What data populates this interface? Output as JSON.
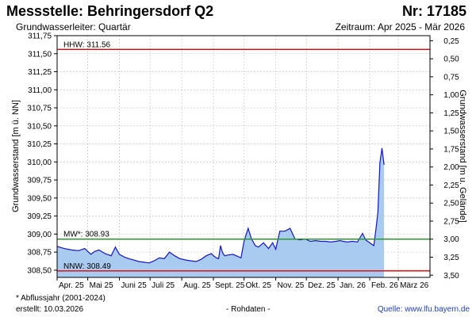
{
  "header": {
    "title": "Messstelle: Behringersdorf Q2",
    "station": "Nr: 17185",
    "subtitle": "Grundwasserleiter: Quartär",
    "period": "Zeitraum: Apr 2025 - Mär 2026"
  },
  "footer": {
    "footnote": "* Abflussjahr (2001-2024)",
    "created": "erstellt:  10.03.2026",
    "raw": "- Rohdaten -",
    "source": "Quelle: www.lfu.bayern.de"
  },
  "colors": {
    "fill": "#a9cbf0",
    "line": "#1414c8",
    "hhw": "#e00000",
    "mw": "#2a9a2a",
    "nnw": "#e00000",
    "grid": "#bdbdbd"
  },
  "chart_data": {
    "type": "area",
    "title": "",
    "ylabel": "Grundwasserstand [m ü. NN]",
    "ylabel_right": "Grundwasserstand [m u. Gelände]",
    "ylim": [
      308.4,
      311.75
    ],
    "y_ticks": [
      308.5,
      308.75,
      309.0,
      309.25,
      309.5,
      309.75,
      310.0,
      310.25,
      310.5,
      310.75,
      311.0,
      311.25,
      311.5,
      311.75
    ],
    "y_tick_labels": [
      "308,50",
      "308,75",
      "309,00",
      "309,25",
      "309,50",
      "309,75",
      "310,00",
      "310,25",
      "310,50",
      "310,75",
      "311,00",
      "311,25",
      "311,50",
      "311,75"
    ],
    "y2_ticks": [
      0.25,
      0.5,
      0.75,
      1.0,
      1.25,
      1.5,
      1.75,
      2.0,
      2.25,
      2.5,
      2.75,
      3.0,
      3.25,
      3.5
    ],
    "y2_tick_labels": [
      "0,25",
      "0,50",
      "0,75",
      "1,00",
      "1,25",
      "1,50",
      "1,75",
      "2,00",
      "2,25",
      "2,50",
      "2,75",
      "3,00",
      "3,25",
      "3,50"
    ],
    "y2_offset": 311.93,
    "x_labels": [
      "Apr. 25",
      "Mai 25",
      "Juni 25",
      "Juli 25",
      "Aug. 25",
      "Sept. 25",
      "Okt. 25",
      "Nov. 25",
      "Dez. 25",
      "Jan. 26",
      "Feb. 26",
      "März 26"
    ],
    "reference_lines": [
      {
        "name": "HHW",
        "label": "HHW: 311.56",
        "value": 311.56
      },
      {
        "name": "MW",
        "label": "MW*: 308.93",
        "value": 308.93
      },
      {
        "name": "NNW",
        "label": "NNW: 308.49",
        "value": 308.49
      }
    ],
    "x": [
      "2025-04-01",
      "2025-04-08",
      "2025-04-15",
      "2025-04-22",
      "2025-04-28",
      "2025-05-04",
      "2025-05-08",
      "2025-05-12",
      "2025-05-18",
      "2025-05-24",
      "2025-05-28",
      "2025-06-01",
      "2025-06-06",
      "2025-06-10",
      "2025-06-15",
      "2025-06-20",
      "2025-06-25",
      "2025-06-30",
      "2025-07-05",
      "2025-07-10",
      "2025-07-15",
      "2025-07-20",
      "2025-07-25",
      "2025-07-30",
      "2025-08-05",
      "2025-08-10",
      "2025-08-15",
      "2025-08-20",
      "2025-08-25",
      "2025-08-30",
      "2025-09-01",
      "2025-09-04",
      "2025-09-06",
      "2025-09-08",
      "2025-09-10",
      "2025-09-12",
      "2025-09-15",
      "2025-09-20",
      "2025-09-25",
      "2025-09-28",
      "2025-10-01",
      "2025-10-05",
      "2025-10-08",
      "2025-10-12",
      "2025-10-15",
      "2025-10-20",
      "2025-10-25",
      "2025-10-29",
      "2025-11-01",
      "2025-11-05",
      "2025-11-10",
      "2025-11-15",
      "2025-11-20",
      "2025-11-25",
      "2025-11-30",
      "2025-12-05",
      "2025-12-10",
      "2025-12-15",
      "2025-12-20",
      "2025-12-25",
      "2025-12-30",
      "2026-01-03",
      "2026-01-06",
      "2026-01-10",
      "2026-01-15",
      "2026-01-20",
      "2026-01-25",
      "2026-01-28",
      "2026-01-31",
      "2026-02-03",
      "2026-02-05",
      "2026-02-07",
      "2026-02-09",
      "2026-02-11",
      "2026-02-13",
      "2026-02-15"
    ],
    "series": [
      {
        "values": [
          308.83,
          308.8,
          308.78,
          308.77,
          308.8,
          308.72,
          308.76,
          308.78,
          308.73,
          308.7,
          308.82,
          308.72,
          308.68,
          308.66,
          308.64,
          308.62,
          308.61,
          308.6,
          308.63,
          308.67,
          308.66,
          308.75,
          308.7,
          308.66,
          308.64,
          308.63,
          308.62,
          308.65,
          308.7,
          308.73,
          308.7,
          308.67,
          308.66,
          308.84,
          308.74,
          308.7,
          308.71,
          308.72,
          308.69,
          308.67,
          308.9,
          309.08,
          308.94,
          308.84,
          308.82,
          308.88,
          308.8,
          308.88,
          308.79,
          309.04,
          309.04,
          309.08,
          308.93,
          308.92,
          308.93,
          308.9,
          308.91,
          308.9,
          308.9,
          308.89,
          308.9,
          308.91,
          308.9,
          308.89,
          308.9,
          308.89,
          309.01,
          308.92,
          308.89,
          308.86,
          308.84,
          309.06,
          309.3,
          309.99,
          310.19,
          309.96
        ]
      }
    ]
  }
}
